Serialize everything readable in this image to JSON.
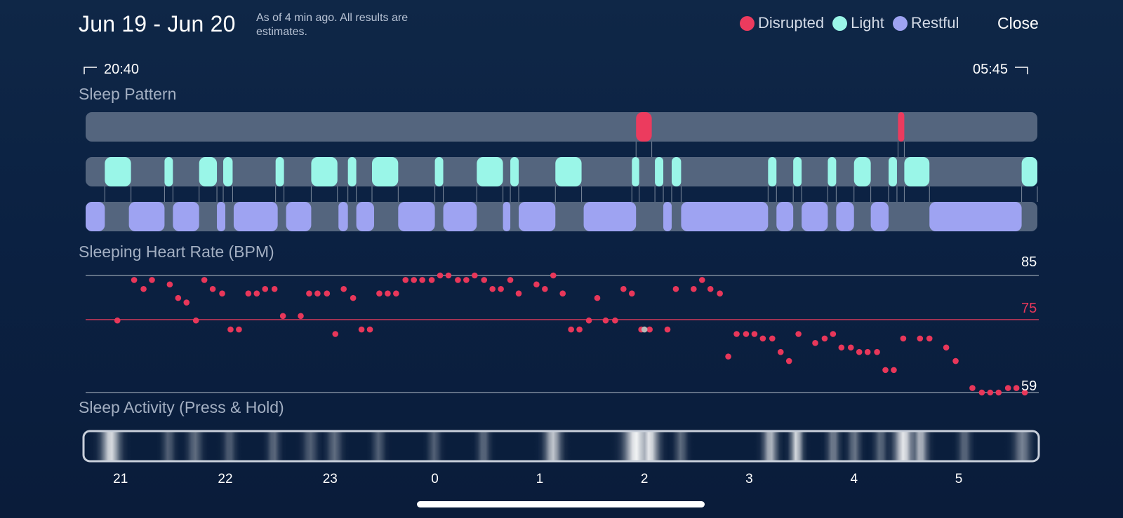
{
  "header": {
    "date_range": "Jun 19 - Jun 20",
    "as_of": "As of 4 min ago. All results are estimates.",
    "close_label": "Close"
  },
  "legend": [
    {
      "label": "Disrupted",
      "color": "#ec3b5e"
    },
    {
      "label": "Light",
      "color": "#9af6e8"
    },
    {
      "label": "Restful",
      "color": "#9ea3f2"
    }
  ],
  "times": {
    "start": "20:40",
    "end": "05:45"
  },
  "sections": {
    "pattern": "Sleep Pattern",
    "heart": "Sleeping Heart Rate (BPM)",
    "activity": "Sleep Activity (Press & Hold)"
  },
  "colors": {
    "disrupted": "#ec3b5e",
    "light": "#9af6e8",
    "restful": "#9ea3f2",
    "track": "#54657e",
    "refline": "#7d8a9c",
    "hr_dot": "#e8375a",
    "highlight_dot": "#b8b8b8"
  },
  "x_axis": {
    "ticks": [
      "21",
      "22",
      "23",
      "0",
      "1",
      "2",
      "3",
      "4",
      "5"
    ]
  },
  "sleep_pattern": {
    "time_range_hours": [
      20.667,
      29.75
    ],
    "disrupted": [
      [
        25.92,
        26.07
      ],
      [
        28.42,
        28.48
      ]
    ],
    "light": [
      [
        20.85,
        21.1
      ],
      [
        21.42,
        21.5
      ],
      [
        21.75,
        21.92
      ],
      [
        21.98,
        22.07
      ],
      [
        22.48,
        22.56
      ],
      [
        22.82,
        23.07
      ],
      [
        23.17,
        23.25
      ],
      [
        23.4,
        23.65
      ],
      [
        24.0,
        24.08
      ],
      [
        24.4,
        24.65
      ],
      [
        24.72,
        24.8
      ],
      [
        25.15,
        25.4
      ],
      [
        25.88,
        25.95
      ],
      [
        26.1,
        26.18
      ],
      [
        26.26,
        26.35
      ],
      [
        27.18,
        27.26
      ],
      [
        27.42,
        27.5
      ],
      [
        27.75,
        27.83
      ],
      [
        28.0,
        28.16
      ],
      [
        28.33,
        28.41
      ],
      [
        28.48,
        28.72
      ],
      [
        29.6,
        29.75
      ]
    ],
    "restful": [
      [
        20.667,
        20.85
      ],
      [
        21.08,
        21.42
      ],
      [
        21.5,
        21.75
      ],
      [
        21.92,
        22.0
      ],
      [
        22.08,
        22.5
      ],
      [
        22.58,
        22.82
      ],
      [
        23.08,
        23.17
      ],
      [
        23.25,
        23.42
      ],
      [
        23.65,
        24.0
      ],
      [
        24.08,
        24.4
      ],
      [
        24.65,
        24.72
      ],
      [
        24.8,
        25.15
      ],
      [
        25.42,
        25.92
      ],
      [
        26.18,
        26.26
      ],
      [
        26.35,
        27.18
      ],
      [
        27.26,
        27.42
      ],
      [
        27.5,
        27.75
      ],
      [
        27.83,
        28.0
      ],
      [
        28.16,
        28.33
      ],
      [
        28.72,
        29.6
      ]
    ]
  },
  "chart_data": {
    "type": "scatter",
    "title": "Sleeping Heart Rate (BPM)",
    "x_ticks": [
      "21",
      "22",
      "23",
      "0",
      "1",
      "2",
      "3",
      "4",
      "5"
    ],
    "xlim_hours": [
      20.67,
      29.75
    ],
    "y_reference_lines": [
      {
        "value": 85,
        "label": "85"
      },
      {
        "value": 75,
        "label": "75"
      },
      {
        "value": 59,
        "label": "59"
      }
    ],
    "ylim": [
      59,
      85
    ],
    "series": [
      {
        "values": [
          [
            20.97,
            75
          ],
          [
            21.13,
            84
          ],
          [
            21.22,
            82
          ],
          [
            21.3,
            84
          ],
          [
            21.47,
            83
          ],
          [
            21.55,
            80
          ],
          [
            21.63,
            79
          ],
          [
            21.72,
            75
          ],
          [
            21.8,
            84
          ],
          [
            21.88,
            82
          ],
          [
            21.97,
            81
          ],
          [
            22.05,
            73
          ],
          [
            22.13,
            73
          ],
          [
            22.22,
            81
          ],
          [
            22.3,
            81
          ],
          [
            22.38,
            82
          ],
          [
            22.47,
            82
          ],
          [
            22.55,
            76
          ],
          [
            22.72,
            76
          ],
          [
            22.8,
            81
          ],
          [
            22.88,
            81
          ],
          [
            22.97,
            81
          ],
          [
            23.05,
            72
          ],
          [
            23.13,
            82
          ],
          [
            23.22,
            80
          ],
          [
            23.3,
            73
          ],
          [
            23.38,
            73
          ],
          [
            23.47,
            81
          ],
          [
            23.55,
            81
          ],
          [
            23.63,
            81
          ],
          [
            23.72,
            84
          ],
          [
            23.8,
            84
          ],
          [
            23.88,
            84
          ],
          [
            23.97,
            84
          ],
          [
            24.05,
            85
          ],
          [
            24.13,
            85
          ],
          [
            24.22,
            84
          ],
          [
            24.3,
            84
          ],
          [
            24.38,
            85
          ],
          [
            24.47,
            84
          ],
          [
            24.55,
            82
          ],
          [
            24.63,
            82
          ],
          [
            24.72,
            84
          ],
          [
            24.8,
            81
          ],
          [
            24.97,
            83
          ],
          [
            25.05,
            82
          ],
          [
            25.13,
            85
          ],
          [
            25.22,
            81
          ],
          [
            25.3,
            73
          ],
          [
            25.38,
            73
          ],
          [
            25.47,
            75
          ],
          [
            25.55,
            80
          ],
          [
            25.63,
            75
          ],
          [
            25.72,
            75
          ],
          [
            25.8,
            82
          ],
          [
            25.88,
            81
          ],
          [
            25.97,
            73
          ],
          [
            26.05,
            73
          ],
          [
            26.22,
            73
          ],
          [
            26.3,
            82
          ],
          [
            26.47,
            82
          ],
          [
            26.55,
            84
          ],
          [
            26.63,
            82
          ],
          [
            26.72,
            81
          ],
          [
            26.8,
            67
          ],
          [
            26.88,
            72
          ],
          [
            26.97,
            72
          ],
          [
            27.05,
            72
          ],
          [
            27.13,
            71
          ],
          [
            27.22,
            71
          ],
          [
            27.3,
            68
          ],
          [
            27.38,
            66
          ],
          [
            27.47,
            72
          ],
          [
            27.63,
            70
          ],
          [
            27.72,
            71
          ],
          [
            27.8,
            72
          ],
          [
            27.88,
            69
          ],
          [
            27.97,
            69
          ],
          [
            28.05,
            68
          ],
          [
            28.13,
            68
          ],
          [
            28.22,
            68
          ],
          [
            28.3,
            64
          ],
          [
            28.38,
            64
          ],
          [
            28.47,
            71
          ],
          [
            28.63,
            71
          ],
          [
            28.72,
            71
          ],
          [
            28.88,
            69
          ],
          [
            28.97,
            66
          ],
          [
            29.13,
            60
          ],
          [
            29.22,
            59
          ],
          [
            29.3,
            59
          ],
          [
            29.38,
            59
          ],
          [
            29.47,
            60
          ],
          [
            29.55,
            60
          ],
          [
            29.63,
            59
          ]
        ]
      }
    ],
    "highlight_point": [
      26.0,
      73
    ]
  },
  "sleep_activity": {
    "peaks": [
      [
        20.92,
        0.85,
        0.08
      ],
      [
        21.47,
        0.3,
        0.05
      ],
      [
        21.72,
        0.35,
        0.06
      ],
      [
        22.05,
        0.3,
        0.05
      ],
      [
        22.47,
        0.35,
        0.05
      ],
      [
        22.82,
        0.3,
        0.06
      ],
      [
        23.05,
        0.35,
        0.06
      ],
      [
        23.47,
        0.3,
        0.05
      ],
      [
        24.0,
        0.3,
        0.05
      ],
      [
        24.47,
        0.35,
        0.05
      ],
      [
        25.13,
        0.75,
        0.07
      ],
      [
        25.92,
        0.95,
        0.1
      ],
      [
        26.05,
        0.9,
        0.08
      ],
      [
        26.35,
        0.35,
        0.05
      ],
      [
        27.2,
        0.7,
        0.06
      ],
      [
        27.45,
        0.85,
        0.05
      ],
      [
        27.8,
        0.45,
        0.05
      ],
      [
        28.0,
        0.4,
        0.05
      ],
      [
        28.25,
        0.35,
        0.05
      ],
      [
        28.47,
        0.9,
        0.08
      ],
      [
        28.63,
        0.7,
        0.06
      ],
      [
        29.05,
        0.35,
        0.05
      ],
      [
        29.6,
        0.45,
        0.07
      ]
    ]
  }
}
